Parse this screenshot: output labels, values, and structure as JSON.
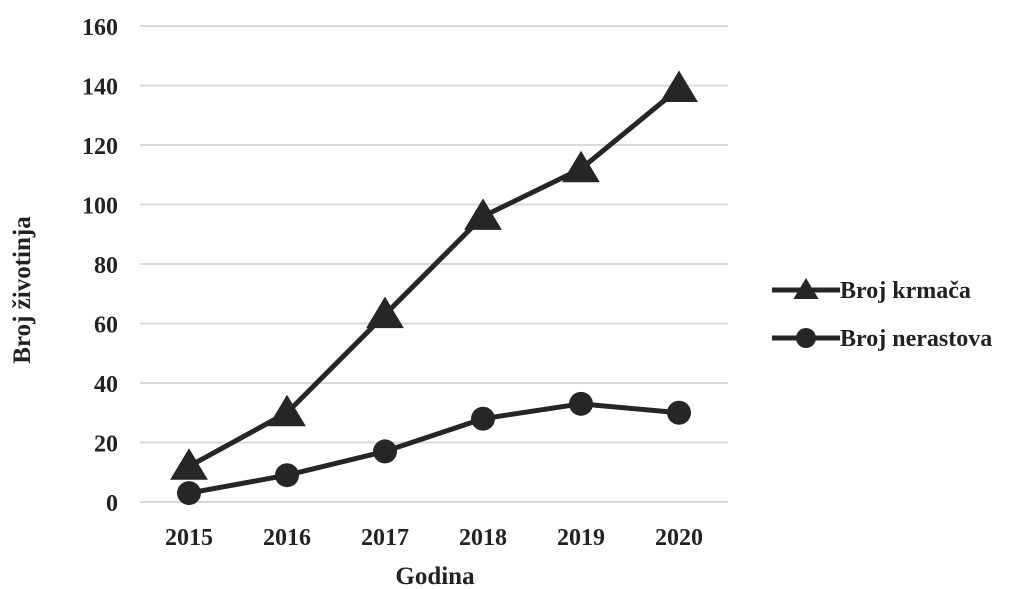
{
  "chart_data": {
    "type": "line",
    "xlabel": "Godina",
    "ylabel": "Broj životinja",
    "categories": [
      "2015",
      "2016",
      "2017",
      "2018",
      "2019",
      "2020"
    ],
    "ylim": [
      0,
      160
    ],
    "yticks": [
      0,
      20,
      40,
      60,
      80,
      100,
      120,
      140,
      160
    ],
    "grid": true,
    "legend_position": "right",
    "series": [
      {
        "name": "Broj krmača",
        "marker": "triangle",
        "color": "#262626",
        "values": [
          12,
          30,
          63,
          96,
          112,
          139
        ]
      },
      {
        "name": "Broj nerastova",
        "marker": "circle",
        "color": "#262626",
        "values": [
          3,
          9,
          17,
          28,
          33,
          30
        ]
      }
    ]
  }
}
